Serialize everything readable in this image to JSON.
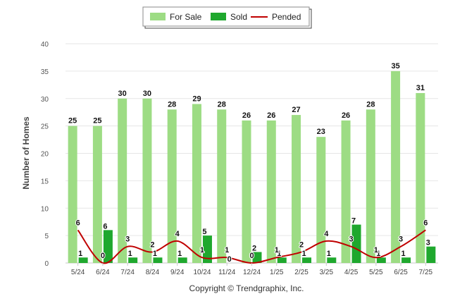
{
  "chart_data": {
    "type": "bar",
    "categories": [
      "5/24",
      "6/24",
      "7/24",
      "8/24",
      "9/24",
      "10/24",
      "11/24",
      "12/24",
      "1/25",
      "2/25",
      "3/25",
      "4/25",
      "5/25",
      "6/25",
      "7/25"
    ],
    "series": [
      {
        "name": "For Sale",
        "type": "bar",
        "color": "#9ddc84",
        "values": [
          25,
          25,
          30,
          30,
          28,
          29,
          28,
          26,
          26,
          27,
          23,
          26,
          28,
          35,
          31
        ]
      },
      {
        "name": "Sold",
        "type": "bar",
        "color": "#1fa82e",
        "values": [
          1,
          6,
          1,
          1,
          1,
          5,
          0,
          2,
          1,
          1,
          1,
          7,
          1,
          1,
          3
        ]
      },
      {
        "name": "Pended",
        "type": "line",
        "color": "#c00000",
        "values": [
          6,
          0,
          3,
          2,
          4,
          1,
          1,
          0,
          1,
          2,
          4,
          3,
          1,
          3,
          6
        ]
      }
    ],
    "ylabel": "Number of Homes",
    "xlabel": "",
    "ylim": [
      0,
      40
    ],
    "yticks": [
      0,
      5,
      10,
      15,
      20,
      25,
      30,
      35,
      40
    ],
    "grid": true,
    "legend_position": "top-center"
  },
  "credits": "Copyright © Trendgraphix, Inc."
}
